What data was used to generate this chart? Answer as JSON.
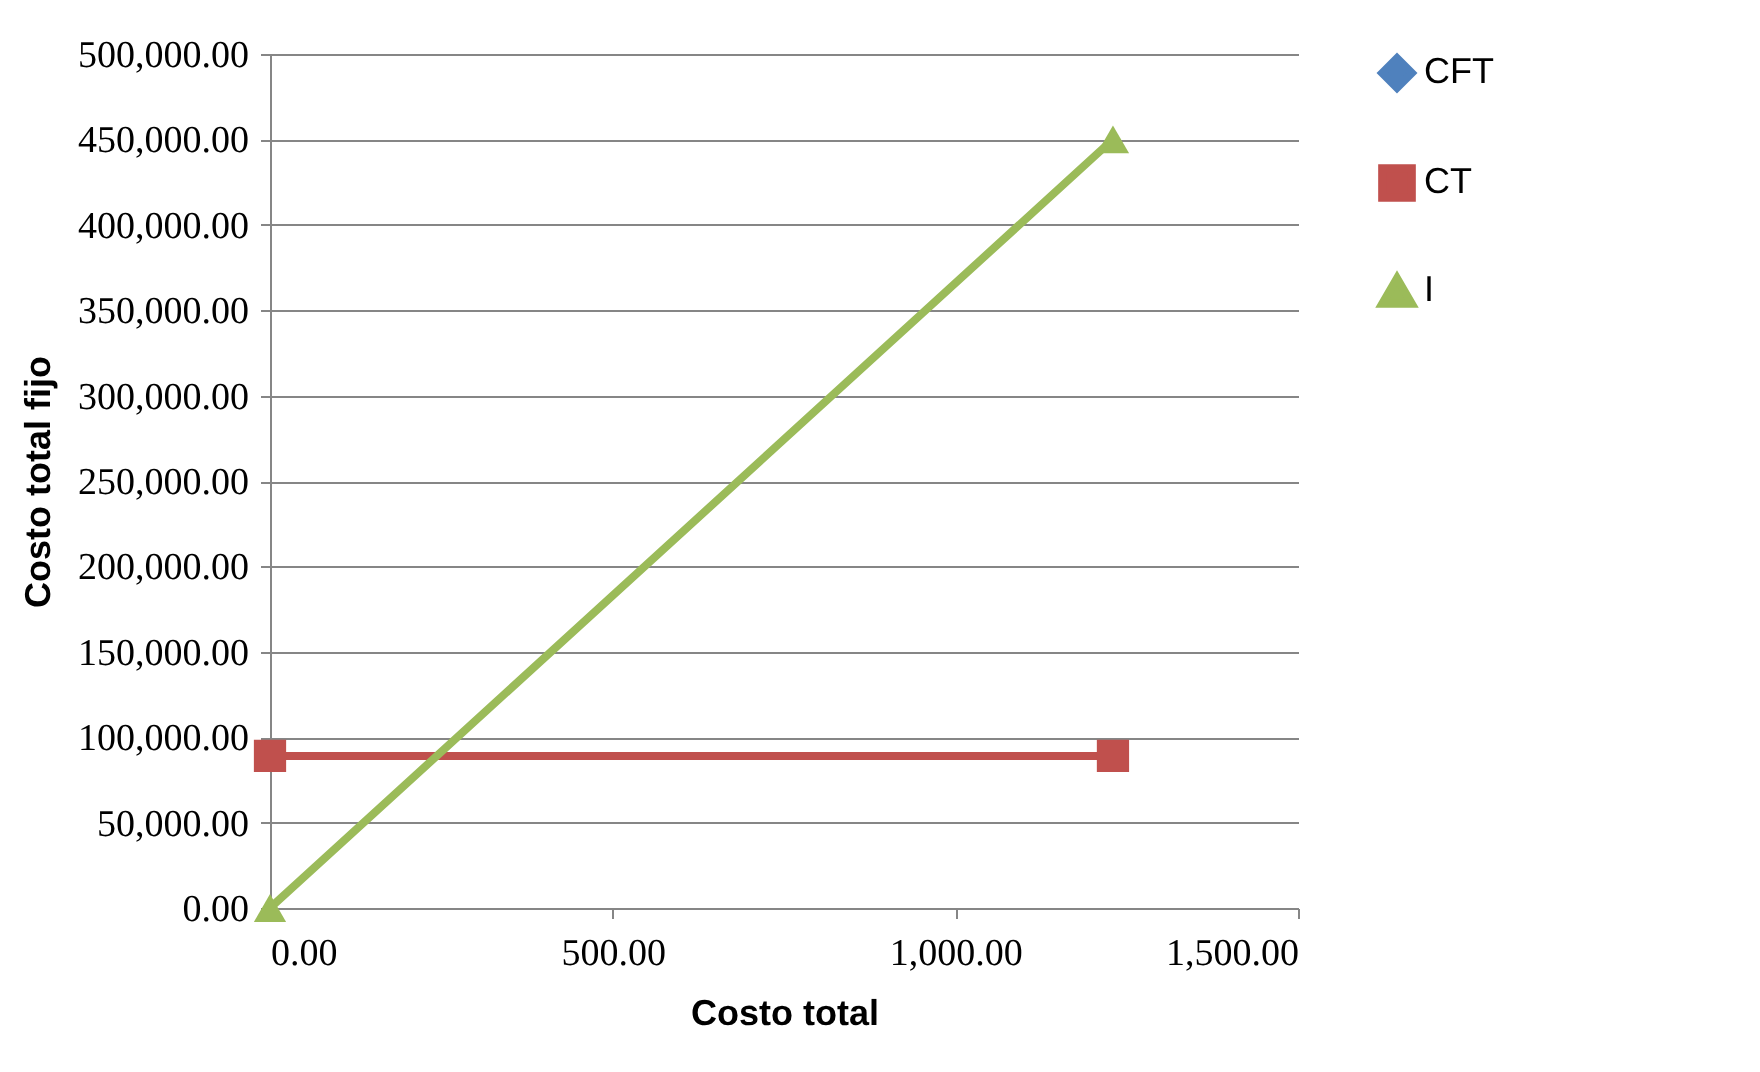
{
  "chart_data": {
    "type": "line",
    "xlabel": "Costo total",
    "ylabel": "Costo total fijo",
    "x": [
      0,
      1230
    ],
    "series": [
      {
        "name": "CFT",
        "color": "#4f81bd",
        "marker": "diamond",
        "values": [
          null,
          null
        ]
      },
      {
        "name": "CT",
        "color": "#c0504d",
        "marker": "square",
        "values": [
          89000,
          89000
        ]
      },
      {
        "name": "I",
        "color": "#9bbb59",
        "marker": "triangle",
        "values": [
          0,
          450000
        ]
      }
    ],
    "xlim": [
      0,
      1500
    ],
    "xticks": [
      {
        "value": 0,
        "label": "0.00"
      },
      {
        "value": 500,
        "label": "500.00"
      },
      {
        "value": 1000,
        "label": "1,000.00"
      },
      {
        "value": 1500,
        "label": "1,500.00"
      }
    ],
    "ylim": [
      0,
      500000
    ],
    "yticks": [
      {
        "value": 0,
        "label": "0.00"
      },
      {
        "value": 50000,
        "label": "50,000.00"
      },
      {
        "value": 100000,
        "label": "100,000.00"
      },
      {
        "value": 150000,
        "label": "150,000.00"
      },
      {
        "value": 200000,
        "label": "200,000.00"
      },
      {
        "value": 250000,
        "label": "250,000.00"
      },
      {
        "value": 300000,
        "label": "300,000.00"
      },
      {
        "value": 350000,
        "label": "350,000.00"
      },
      {
        "value": 400000,
        "label": "400,000.00"
      },
      {
        "value": 450000,
        "label": "450,000.00"
      },
      {
        "value": 500000,
        "label": "500,000.00"
      }
    ],
    "grid": "y",
    "legend": "right",
    "line_style": "solid"
  }
}
